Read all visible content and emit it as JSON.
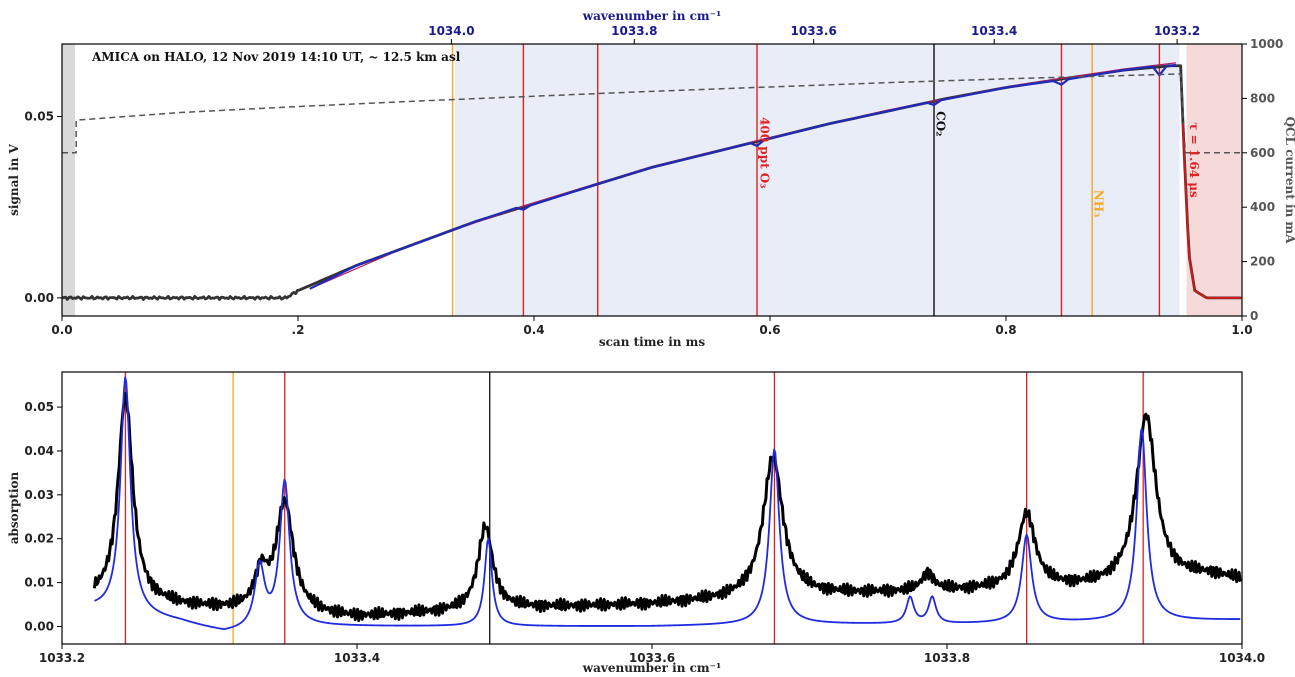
{
  "chart_data": [
    {
      "type": "line",
      "title": "AMICA on HALO, 12 Nov 2019 14:10 UT, ~ 12.5 km asl",
      "xlabel": "scan time in ms",
      "ylabel": "signal in V",
      "y2label": "QCL current in mA",
      "top_xlabel": "wavenumber in cm⁻¹",
      "xlim": [
        0,
        1.0
      ],
      "ylim": [
        -0.005,
        0.07
      ],
      "y2lim": [
        0,
        1000
      ],
      "x_ticks": [
        {
          "v": 0.0,
          "label": "0.0"
        },
        {
          "v": 0.2,
          "label": ".2"
        },
        {
          "v": 0.4,
          "label": "0.4"
        },
        {
          "v": 0.6,
          "label": "0.6"
        },
        {
          "v": 0.8,
          "label": "0.8"
        },
        {
          "v": 1.0,
          "label": "1.0"
        }
      ],
      "y_ticks": [
        {
          "v": 0.0,
          "label": "0.00"
        },
        {
          "v": 0.05,
          "label": "0.05"
        }
      ],
      "y2_ticks": [
        {
          "v": 0,
          "label": "0"
        },
        {
          "v": 200,
          "label": "200"
        },
        {
          "v": 400,
          "label": "400"
        },
        {
          "v": 600,
          "label": "600"
        },
        {
          "v": 800,
          "label": "800"
        },
        {
          "v": 1000,
          "label": "1000"
        }
      ],
      "top_ticks": [
        {
          "v": 0.33,
          "label": "1034.0"
        },
        {
          "v": 0.485,
          "label": "1033.8"
        },
        {
          "v": 0.637,
          "label": "1033.6"
        },
        {
          "v": 0.79,
          "label": "1033.4"
        },
        {
          "v": 0.945,
          "label": "1033.2"
        }
      ],
      "regions": [
        {
          "x0": 0.0,
          "x1": 0.011,
          "color": "#d9d9d9"
        },
        {
          "x0": 0.333,
          "x1": 0.947,
          "color": "#e8edf8"
        },
        {
          "x0": 0.953,
          "x1": 1.0,
          "color": "#f6d9d9"
        }
      ],
      "vlines": [
        {
          "x": 0.331,
          "color": "#f5a623"
        },
        {
          "x": 0.391,
          "color": "#e32020"
        },
        {
          "x": 0.454,
          "color": "#e32020"
        },
        {
          "x": 0.589,
          "color": "#e32020"
        },
        {
          "x": 0.739,
          "color": "#111111"
        },
        {
          "x": 0.847,
          "color": "#e32020"
        },
        {
          "x": 0.873,
          "color": "#f5a623"
        },
        {
          "x": 0.93,
          "color": "#e32020"
        }
      ],
      "annotations": [
        {
          "text": "400 ppt O₃",
          "x": 0.592,
          "y": 0.04,
          "rotate": 90,
          "color": "#e32020"
        },
        {
          "text": "CO₂",
          "x": 0.741,
          "y": 0.048,
          "rotate": 90,
          "color": "#111111"
        },
        {
          "text": "NH₃",
          "x": 0.875,
          "y": 0.026,
          "rotate": 90,
          "color": "#f5a623"
        },
        {
          "text": "τ = 1.64 μs",
          "x": 0.956,
          "y": 0.038,
          "rotate": 90,
          "color": "#e32020"
        }
      ],
      "series": [
        {
          "role": "signal-measured",
          "color": "#333333",
          "width": 2.8,
          "x": [
            0.0,
            0.19,
            0.2,
            0.25,
            0.3,
            0.35,
            0.4,
            0.45,
            0.5,
            0.55,
            0.6,
            0.65,
            0.7,
            0.75,
            0.8,
            0.85,
            0.9,
            0.94,
            0.948,
            0.951,
            0.955,
            0.96,
            0.97,
            1.0
          ],
          "y": [
            0.0,
            0.0,
            0.002,
            0.009,
            0.015,
            0.021,
            0.026,
            0.031,
            0.036,
            0.04,
            0.044,
            0.048,
            0.0515,
            0.055,
            0.058,
            0.0605,
            0.0628,
            0.064,
            0.064,
            0.04,
            0.012,
            0.002,
            0.0,
            0.0
          ]
        },
        {
          "role": "signal-fit",
          "color": "#1f2bb8",
          "width": 2.2,
          "x": [
            0.21,
            0.25,
            0.3,
            0.35,
            0.385,
            0.391,
            0.397,
            0.45,
            0.5,
            0.55,
            0.583,
            0.589,
            0.595,
            0.65,
            0.7,
            0.733,
            0.739,
            0.745,
            0.8,
            0.84,
            0.847,
            0.853,
            0.9,
            0.924,
            0.93,
            0.936,
            0.944
          ],
          "y": [
            0.0025,
            0.009,
            0.015,
            0.021,
            0.0248,
            0.0243,
            0.0255,
            0.031,
            0.036,
            0.04,
            0.0427,
            0.0419,
            0.0435,
            0.048,
            0.0515,
            0.0538,
            0.0532,
            0.0545,
            0.058,
            0.0598,
            0.0588,
            0.0603,
            0.0628,
            0.0638,
            0.0614,
            0.0639,
            0.0642
          ]
        },
        {
          "role": "signal-baseline",
          "color": "#b01a6a",
          "width": 1.2,
          "x": [
            0.21,
            0.3,
            0.4,
            0.5,
            0.6,
            0.7,
            0.8,
            0.9,
            0.944
          ],
          "y": [
            0.0025,
            0.0152,
            0.0262,
            0.0362,
            0.0442,
            0.0518,
            0.0582,
            0.0631,
            0.0648
          ]
        },
        {
          "role": "qcl-current",
          "axis": "y2",
          "color": "#555555",
          "width": 1.5,
          "dash": "6,4",
          "x": [
            0.0,
            0.012,
            0.012,
            0.1,
            0.2,
            0.3,
            0.4,
            0.5,
            0.6,
            0.7,
            0.8,
            0.9,
            0.948,
            0.952,
            1.0
          ],
          "y": [
            600,
            600,
            720,
            748,
            770,
            790,
            808,
            826,
            842,
            858,
            872,
            884,
            890,
            600,
            600
          ]
        }
      ]
    },
    {
      "type": "line",
      "xlabel": "wavenumber in cm⁻¹",
      "ylabel": "absorption",
      "xlim": [
        1033.2,
        1034.0
      ],
      "ylim": [
        -0.004,
        0.058
      ],
      "x_ticks": [
        {
          "v": 1033.2,
          "label": "1033.2"
        },
        {
          "v": 1033.4,
          "label": "1033.4"
        },
        {
          "v": 1033.6,
          "label": "1033.6"
        },
        {
          "v": 1033.8,
          "label": "1033.8"
        },
        {
          "v": 1034.0,
          "label": "1034.0"
        }
      ],
      "y_ticks": [
        {
          "v": 0.0,
          "label": "0.00"
        },
        {
          "v": 0.01,
          "label": "0.01"
        },
        {
          "v": 0.02,
          "label": "0.02"
        },
        {
          "v": 0.03,
          "label": "0.03"
        },
        {
          "v": 0.04,
          "label": "0.04"
        },
        {
          "v": 0.05,
          "label": "0.05"
        }
      ],
      "vlines": [
        {
          "x": 1033.243,
          "color": "#e32020"
        },
        {
          "x": 1033.316,
          "color": "#f5a623"
        },
        {
          "x": 1033.351,
          "color": "#e32020"
        },
        {
          "x": 1033.49,
          "color": "#111111"
        },
        {
          "x": 1033.683,
          "color": "#e32020"
        },
        {
          "x": 1033.854,
          "color": "#e32020"
        },
        {
          "x": 1033.933,
          "color": "#e32020"
        }
      ],
      "series": [
        {
          "role": "measured-absorption",
          "color": "#000000",
          "width": 3,
          "baseline": {
            "x": [
              1033.22,
              1033.3,
              1033.4,
              1033.5,
              1033.6,
              1033.7,
              1033.8,
              1033.9,
              1033.98,
              1034.0
            ],
            "y": [
              0.006,
              0.004,
              0.002,
              0.004,
              0.005,
              0.007,
              0.008,
              0.009,
              0.0115,
              0.0105
            ]
          },
          "peaks": [
            {
              "x0": 1033.243,
              "amp": 0.047,
              "w": 0.006
            },
            {
              "x0": 1033.335,
              "amp": 0.008,
              "w": 0.005
            },
            {
              "x0": 1033.351,
              "amp": 0.025,
              "w": 0.007
            },
            {
              "x0": 1033.487,
              "amp": 0.019,
              "w": 0.006
            },
            {
              "x0": 1033.682,
              "amp": 0.032,
              "w": 0.008
            },
            {
              "x0": 1033.787,
              "amp": 0.004,
              "w": 0.005
            },
            {
              "x0": 1033.854,
              "amp": 0.017,
              "w": 0.007
            },
            {
              "x0": 1033.935,
              "amp": 0.038,
              "w": 0.008
            }
          ],
          "noise": 0.0015
        },
        {
          "role": "fit-absorption",
          "color": "#1f2be0",
          "width": 1.8,
          "baseline": {
            "x": [
              1033.22,
              1033.28,
              1033.31,
              1033.36,
              1033.5,
              1033.6,
              1033.7,
              1033.8,
              1033.9,
              1034.0
            ],
            "y": [
              0.004,
              0.001,
              -0.0015,
              0.0,
              0.0,
              0.0,
              0.0005,
              0.0005,
              0.001,
              0.0015
            ]
          },
          "peaks": [
            {
              "x0": 1033.243,
              "amp": 0.054,
              "w": 0.004
            },
            {
              "x0": 1033.334,
              "amp": 0.014,
              "w": 0.004
            },
            {
              "x0": 1033.351,
              "amp": 0.033,
              "w": 0.004
            },
            {
              "x0": 1033.489,
              "amp": 0.02,
              "w": 0.003
            },
            {
              "x0": 1033.683,
              "amp": 0.04,
              "w": 0.004
            },
            {
              "x0": 1033.775,
              "amp": 0.006,
              "w": 0.003
            },
            {
              "x0": 1033.79,
              "amp": 0.006,
              "w": 0.003
            },
            {
              "x0": 1033.854,
              "amp": 0.02,
              "w": 0.004
            },
            {
              "x0": 1033.932,
              "amp": 0.044,
              "w": 0.004
            }
          ],
          "noise": 0
        }
      ]
    }
  ]
}
